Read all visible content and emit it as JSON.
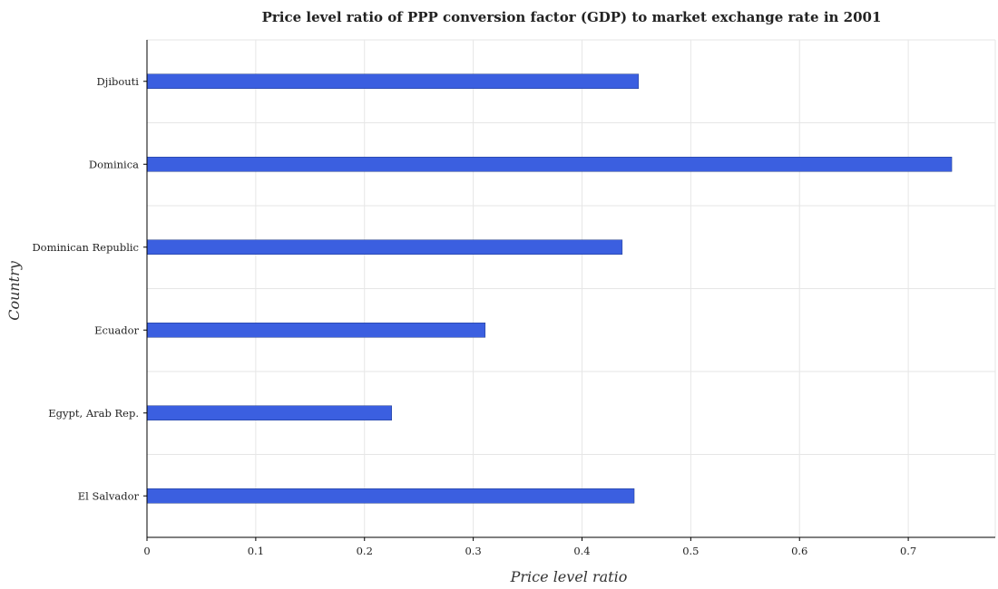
{
  "chart_data": {
    "type": "bar",
    "orientation": "horizontal",
    "title": "Price level ratio of PPP conversion factor (GDP) to market exchange rate in 2001",
    "xlabel": "Price level ratio",
    "ylabel": "Country",
    "categories": [
      "Djibouti",
      "Dominica",
      "Dominican Republic",
      "Ecuador",
      "Egypt, Arab Rep.",
      "El Salvador"
    ],
    "values": [
      0.452,
      0.74,
      0.437,
      0.311,
      0.225,
      0.448
    ],
    "xlim": [
      0,
      0.78
    ],
    "xticks": [
      "0",
      "0.1",
      "0.2",
      "0.3",
      "0.4",
      "0.5",
      "0.6",
      "0.7"
    ],
    "grid": true,
    "legend": "none",
    "bar_color": "#3b5fe0"
  }
}
